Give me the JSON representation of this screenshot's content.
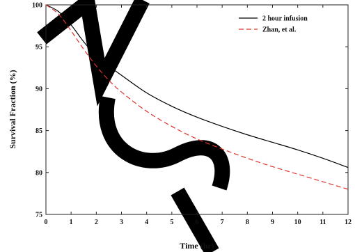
{
  "chart_data": {
    "type": "line",
    "title": "",
    "xlabel": "Time (hr)",
    "ylabel": "Survival Fraction (%)",
    "xlim": [
      0,
      12
    ],
    "ylim": [
      75,
      100
    ],
    "x_ticks": [
      0,
      1,
      2,
      3,
      4,
      5,
      6,
      7,
      8,
      9,
      10,
      11,
      12
    ],
    "y_ticks": [
      75,
      80,
      85,
      90,
      95,
      100
    ],
    "grid": false,
    "legend_position": "top-right",
    "series": [
      {
        "name": "2 hour infusion",
        "color": "#000000",
        "dash": "solid",
        "x": [
          0,
          0.5,
          1,
          1.5,
          2,
          2.5,
          3,
          4,
          5,
          6,
          7,
          8,
          9,
          10,
          11,
          12
        ],
        "y": [
          100,
          99.2,
          97.6,
          95.6,
          93.9,
          92.7,
          91.6,
          89.5,
          87.9,
          86.6,
          85.5,
          84.5,
          83.6,
          82.7,
          81.7,
          80.6
        ]
      },
      {
        "name": "Zhan, et al.",
        "color": "#e0312b",
        "dash": "dashed",
        "x": [
          0,
          0.5,
          1,
          1.5,
          2,
          2.5,
          3,
          4,
          5,
          6,
          7,
          8,
          9,
          10,
          11,
          12
        ],
        "y": [
          100,
          98.9,
          96.9,
          94.7,
          92.7,
          91.0,
          89.6,
          87.3,
          85.5,
          84.0,
          82.8,
          81.7,
          80.7,
          79.8,
          78.9,
          78.0
        ]
      }
    ]
  }
}
